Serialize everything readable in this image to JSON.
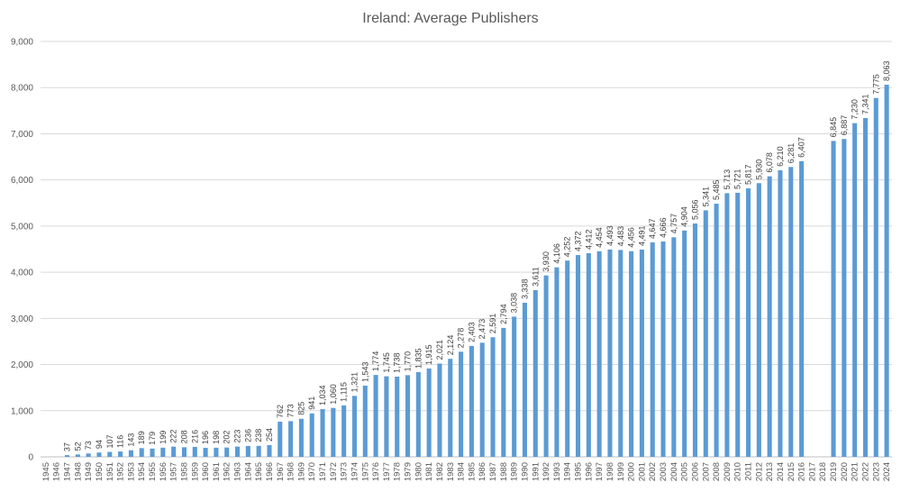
{
  "chart_data": {
    "type": "bar",
    "title": "Ireland: Average Publishers",
    "xlabel": "",
    "ylabel": "",
    "ylim": [
      0,
      9000
    ],
    "yticks": [
      0,
      1000,
      2000,
      3000,
      4000,
      5000,
      6000,
      7000,
      8000,
      9000
    ],
    "ytick_labels": [
      "0",
      "1,000",
      "2,000",
      "3,000",
      "4,000",
      "5,000",
      "6,000",
      "7,000",
      "8,000",
      "9,000"
    ],
    "grid": true,
    "legend": "none",
    "bar_color": "#5b9bd5",
    "categories": [
      "1945",
      "1946",
      "1947",
      "1948",
      "1949",
      "1950",
      "1951",
      "1952",
      "1953",
      "1954",
      "1955",
      "1956",
      "1957",
      "1958",
      "1959",
      "1960",
      "1961",
      "1962",
      "1963",
      "1964",
      "1965",
      "1966",
      "1967",
      "1968",
      "1969",
      "1970",
      "1971",
      "1972",
      "1973",
      "1974",
      "1975",
      "1976",
      "1977",
      "1978",
      "1979",
      "1980",
      "1981",
      "1982",
      "1983",
      "1984",
      "1985",
      "1986",
      "1987",
      "1988",
      "1989",
      "1990",
      "1991",
      "1992",
      "1993",
      "1994",
      "1995",
      "1996",
      "1997",
      "1998",
      "1999",
      "2000",
      "2001",
      "2002",
      "2003",
      "2004",
      "2005",
      "2006",
      "2007",
      "2008",
      "2009",
      "2010",
      "2011",
      "2012",
      "2013",
      "2014",
      "2015",
      "2016",
      "2017",
      "2018",
      "2019",
      "2020",
      "2021",
      "2022",
      "2023",
      "2024"
    ],
    "values": [
      null,
      null,
      37,
      52,
      73,
      94,
      107,
      116,
      143,
      189,
      179,
      199,
      222,
      208,
      216,
      196,
      198,
      202,
      223,
      236,
      238,
      254,
      762,
      773,
      825,
      941,
      1034,
      1060,
      1115,
      1321,
      1543,
      1774,
      1745,
      1738,
      1770,
      1835,
      1915,
      2021,
      2124,
      2278,
      2403,
      2473,
      2591,
      2794,
      3038,
      3338,
      3611,
      3930,
      4106,
      4252,
      4372,
      4412,
      4454,
      4493,
      4483,
      4456,
      4491,
      4647,
      4666,
      4757,
      4904,
      5056,
      5341,
      5485,
      5713,
      5721,
      5817,
      5930,
      6078,
      6210,
      6281,
      6407,
      null,
      null,
      6845,
      6887,
      7230,
      7341,
      7775,
      8063
    ],
    "value_labels": [
      "",
      "",
      "37",
      "52",
      "73",
      "94",
      "107",
      "116",
      "143",
      "189",
      "179",
      "199",
      "222",
      "208",
      "216",
      "196",
      "198",
      "202",
      "223",
      "236",
      "238",
      "254",
      "762",
      "773",
      "825",
      "941",
      "1,034",
      "1,060",
      "1,115",
      "1,321",
      "1,543",
      "1,774",
      "1,745",
      "1,738",
      "1,770",
      "1,835",
      "1,915",
      "2,021",
      "2,124",
      "2,278",
      "2,403",
      "2,473",
      "2,591",
      "2,794",
      "3,038",
      "3,338",
      "3,611",
      "3,930",
      "4,106",
      "4,252",
      "4,372",
      "4,412",
      "4,454",
      "4,493",
      "4,483",
      "4,456",
      "4,491",
      "4,647",
      "4,666",
      "4,757",
      "4,904",
      "5,056",
      "5,341",
      "5,485",
      "5,713",
      "5,721",
      "5,817",
      "5,930",
      "6,078",
      "6,210",
      "6,281",
      "6,407",
      "",
      "",
      "6,845",
      "6,887",
      "7,230",
      "7,341",
      "7,775",
      "8,063"
    ]
  }
}
